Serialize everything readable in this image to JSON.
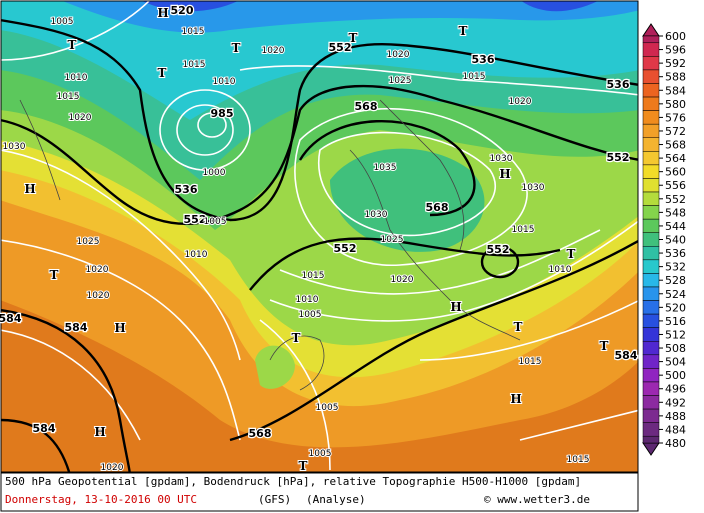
{
  "map": {
    "labels": [
      "H",
      "520",
      "1005",
      "1015",
      "T",
      "1020",
      "552",
      "T",
      "1020",
      "T",
      "536",
      "1015",
      "1025",
      "568",
      "1020",
      "536",
      "552",
      "1030",
      "1035",
      "H",
      "1030",
      "568",
      "1030",
      "1025",
      "552",
      "552",
      "1015",
      "T",
      "1010",
      "1020",
      "1015",
      "1010",
      "1005",
      "H",
      "T",
      "T",
      "1015",
      "T",
      "584",
      "H",
      "1005",
      "568",
      "1005",
      "T",
      "1015",
      "1020",
      "H",
      "584",
      "584",
      "H",
      "1020",
      "1020",
      "T",
      "1025",
      "1010",
      "552",
      "1005",
      "536",
      "1000",
      "985",
      "H",
      "1030",
      "1020",
      "1015",
      "1010",
      "T",
      "T",
      "1015",
      "1010",
      "584"
    ]
  },
  "colorbar": {
    "values": [
      600,
      596,
      592,
      588,
      584,
      580,
      576,
      572,
      568,
      564,
      560,
      556,
      552,
      548,
      544,
      540,
      536,
      532,
      528,
      524,
      520,
      516,
      512,
      508,
      504,
      500,
      496,
      492,
      488,
      484,
      480
    ],
    "colors": [
      "#b0205a",
      "#d02850",
      "#e03848",
      "#e85030",
      "#ec6420",
      "#ee7a1c",
      "#f08c1e",
      "#f2a028",
      "#f4b430",
      "#f4c830",
      "#f2dc28",
      "#e0e030",
      "#b4dc3c",
      "#84d44c",
      "#5cc85c",
      "#40c07c",
      "#30c0a4",
      "#28c8cc",
      "#28b8e8",
      "#2894ec",
      "#2870e8",
      "#2850e0",
      "#3434d8",
      "#5028d0",
      "#7024c8",
      "#9024c0",
      "#9c28b0",
      "#8c2aa0",
      "#7c2a90",
      "#6c2a80",
      "#5c2870"
    ]
  },
  "footer": {
    "line1": "500 hPa Geopotential [gpdam], Bodendruck [hPa], relative Topographie H500-H1000 [gpdam]",
    "date": "Donnerstag, 13-10-2016  00 UTC",
    "model": "(GFS)",
    "mode": "(Analyse)",
    "credit": "© www.wetter3.de"
  }
}
